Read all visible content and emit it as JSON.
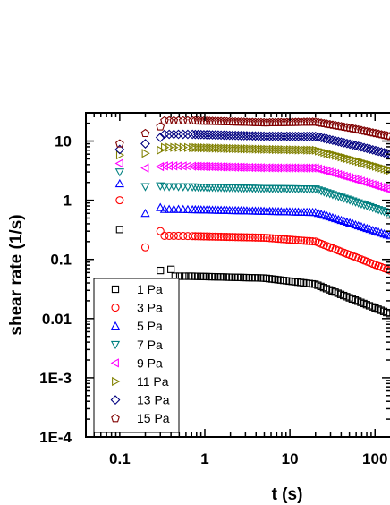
{
  "chart_data": {
    "type": "scatter",
    "xlabel": "t (s)",
    "ylabel": "shear rate (1/s)",
    "x_scale": "log",
    "y_scale": "log",
    "xlim": [
      0.04,
      150
    ],
    "ylim": [
      0.0001,
      30
    ],
    "x_ticks": [
      {
        "value": 0.1,
        "label": "0.1"
      },
      {
        "value": 1,
        "label": "1"
      },
      {
        "value": 10,
        "label": "10"
      },
      {
        "value": 100,
        "label": "100"
      }
    ],
    "y_ticks": [
      {
        "value": 0.0001,
        "label": "1E-4"
      },
      {
        "value": 0.001,
        "label": "1E-3"
      },
      {
        "value": 0.01,
        "label": "0.01"
      },
      {
        "value": 0.1,
        "label": "0.1"
      },
      {
        "value": 1,
        "label": "1"
      },
      {
        "value": 10,
        "label": "10"
      }
    ],
    "grid": false,
    "legend_position": "bottom-left",
    "series": [
      {
        "name": "1 Pa",
        "marker": "square",
        "color": "#000000",
        "early": [
          [
            0.1,
            0.32
          ],
          [
            0.3,
            0.065
          ],
          [
            0.4,
            0.068
          ]
        ],
        "plateau": 0.052,
        "plateau_end": 0.7,
        "mid": 0.038,
        "end": 0.012
      },
      {
        "name": "3 Pa",
        "marker": "circle",
        "color": "#ff0000",
        "early": [
          [
            0.1,
            1.0
          ],
          [
            0.2,
            0.16
          ],
          [
            0.3,
            0.3
          ]
        ],
        "plateau": 0.25,
        "plateau_end": 0.5,
        "mid": 0.2,
        "end": 0.065
      },
      {
        "name": "5 Pa",
        "marker": "triangle-up",
        "color": "#0000ff",
        "early": [
          [
            0.1,
            1.9
          ],
          [
            0.2,
            0.6
          ],
          [
            0.3,
            0.75
          ]
        ],
        "plateau": 0.7,
        "plateau_end": 0.5,
        "mid": 0.62,
        "end": 0.25
      },
      {
        "name": "7 Pa",
        "marker": "triangle-down",
        "color": "#008080",
        "early": [
          [
            0.1,
            3.0
          ],
          [
            0.2,
            1.7
          ],
          [
            0.3,
            1.75
          ]
        ],
        "plateau": 1.7,
        "plateau_end": 0.5,
        "mid": 1.55,
        "end": 0.6
      },
      {
        "name": "9 Pa",
        "marker": "triangle-left",
        "color": "#ff00ff",
        "early": [
          [
            0.1,
            4.2
          ],
          [
            0.2,
            3.5
          ],
          [
            0.3,
            3.7
          ]
        ],
        "plateau": 3.8,
        "plateau_end": 0.5,
        "mid": 3.5,
        "end": 1.5
      },
      {
        "name": "11 Pa",
        "marker": "triangle-right",
        "color": "#808000",
        "early": [
          [
            0.1,
            5.8
          ],
          [
            0.2,
            6.2
          ],
          [
            0.3,
            7.0
          ]
        ],
        "plateau": 7.8,
        "plateau_end": 0.6,
        "mid": 7.0,
        "end": 3.2
      },
      {
        "name": "13 Pa",
        "marker": "diamond",
        "color": "#000080",
        "early": [
          [
            0.1,
            7.2
          ],
          [
            0.2,
            9.0
          ],
          [
            0.3,
            11.5
          ]
        ],
        "plateau": 13.0,
        "plateau_end": 0.7,
        "mid": 12.0,
        "end": 6.0
      },
      {
        "name": "15 Pa",
        "marker": "pentagon",
        "color": "#800000",
        "early": [
          [
            0.1,
            9.0
          ],
          [
            0.2,
            13.5
          ],
          [
            0.3,
            17.5
          ]
        ],
        "plateau": 22.0,
        "plateau_end": 0.8,
        "mid": 21.0,
        "end": 12.0
      }
    ]
  }
}
